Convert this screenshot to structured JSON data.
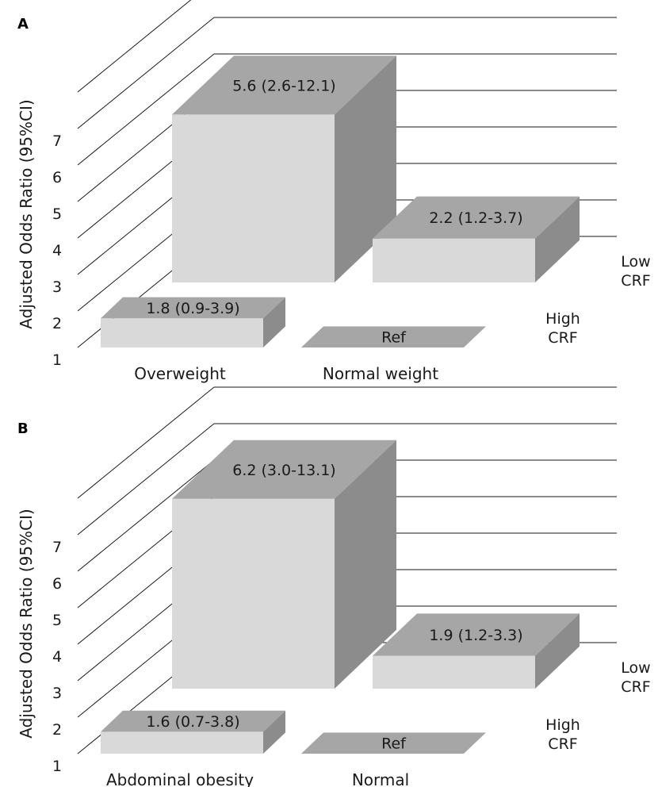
{
  "chart_data": [
    {
      "panel": "A",
      "type": "bar",
      "ylabel": "Adjusted Odds Ratio (95%CI)",
      "ylim": [
        1,
        7
      ],
      "yticks": [
        "1",
        "2",
        "3",
        "4",
        "5",
        "6",
        "7"
      ],
      "categories": [
        "Overweight",
        "Normal weight"
      ],
      "series": [
        {
          "name": "Low CRF",
          "label_lines": [
            "Low",
            "CRF"
          ],
          "values": [
            5.6,
            2.2
          ],
          "labels": [
            "5.6 (2.6-12.1)",
            "2.2 (1.2-3.7)"
          ]
        },
        {
          "name": "High CRF",
          "label_lines": [
            "High",
            "CRF"
          ],
          "values": [
            1.8,
            1.0
          ],
          "labels": [
            "1.8 (0.9-3.9)",
            "Ref"
          ]
        }
      ]
    },
    {
      "panel": "B",
      "type": "bar",
      "ylabel": "Adjusted Odds Ratio (95%CI)",
      "ylim": [
        1,
        7
      ],
      "yticks": [
        "1",
        "2",
        "3",
        "4",
        "5",
        "6",
        "7"
      ],
      "categories": [
        "Abdominal obesity",
        "Normal"
      ],
      "series": [
        {
          "name": "Low CRF",
          "label_lines": [
            "Low",
            "CRF"
          ],
          "values": [
            6.2,
            1.9
          ],
          "labels": [
            "6.2 (3.0-13.1)",
            "1.9 (1.2-3.3)"
          ]
        },
        {
          "name": "High CRF",
          "label_lines": [
            "High",
            "CRF"
          ],
          "values": [
            1.6,
            1.0
          ],
          "labels": [
            "1.6 (0.7-3.8)",
            "Ref"
          ]
        }
      ]
    }
  ],
  "colors": {
    "front": "#d9d9d9",
    "top": "#a6a6a6",
    "side": "#8c8c8c",
    "grid": "#1a1a1a"
  }
}
